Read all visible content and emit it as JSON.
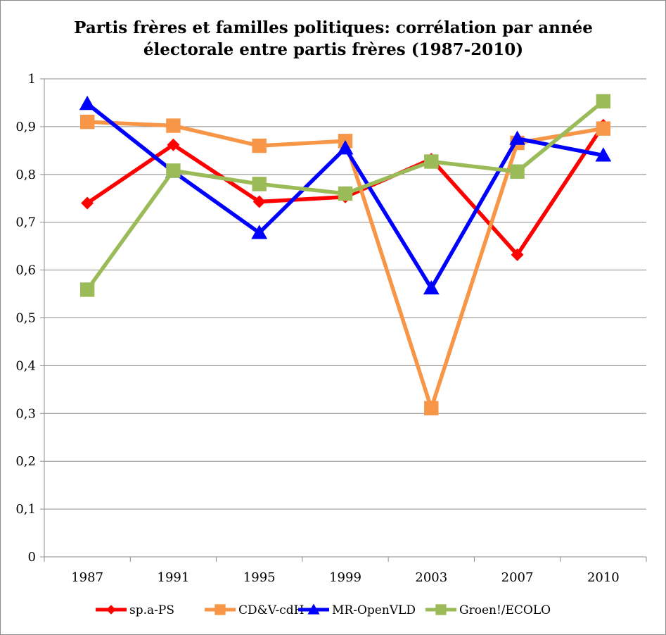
{
  "chart_data": {
    "type": "line",
    "title_lines": [
      "Partis frères et familles politiques: corrélation par année",
      "électorale entre partis frères (1987-2010)"
    ],
    "xlabel": "",
    "ylabel": "",
    "categories": [
      "1987",
      "1991",
      "1995",
      "1999",
      "2003",
      "2007",
      "2010"
    ],
    "ylim": [
      0,
      1
    ],
    "yticks": [
      "0",
      "0,1",
      "0,2",
      "0,3",
      "0,4",
      "0,5",
      "0,6",
      "0,7",
      "0,8",
      "0,9",
      "1"
    ],
    "grid": true,
    "legend_position": "bottom",
    "series": [
      {
        "name": "sp.a-PS",
        "color": "#ff0000",
        "marker": "diamond",
        "values": [
          0.74,
          0.862,
          0.743,
          0.753,
          0.832,
          0.632,
          0.903
        ]
      },
      {
        "name": "CD&V-cdH",
        "color": "#f79646",
        "marker": "square",
        "values": [
          0.91,
          0.902,
          0.86,
          0.87,
          0.311,
          0.866,
          0.896
        ]
      },
      {
        "name": "MR-OpenVLD",
        "color": "#0000ff",
        "marker": "triangle",
        "values": [
          0.948,
          0.806,
          0.678,
          0.855,
          0.562,
          0.875,
          0.84
        ]
      },
      {
        "name": "Groen!/ECOLO",
        "color": "#9bbb59",
        "marker": "square",
        "values": [
          0.559,
          0.808,
          0.78,
          0.76,
          0.827,
          0.806,
          0.953
        ]
      }
    ]
  }
}
